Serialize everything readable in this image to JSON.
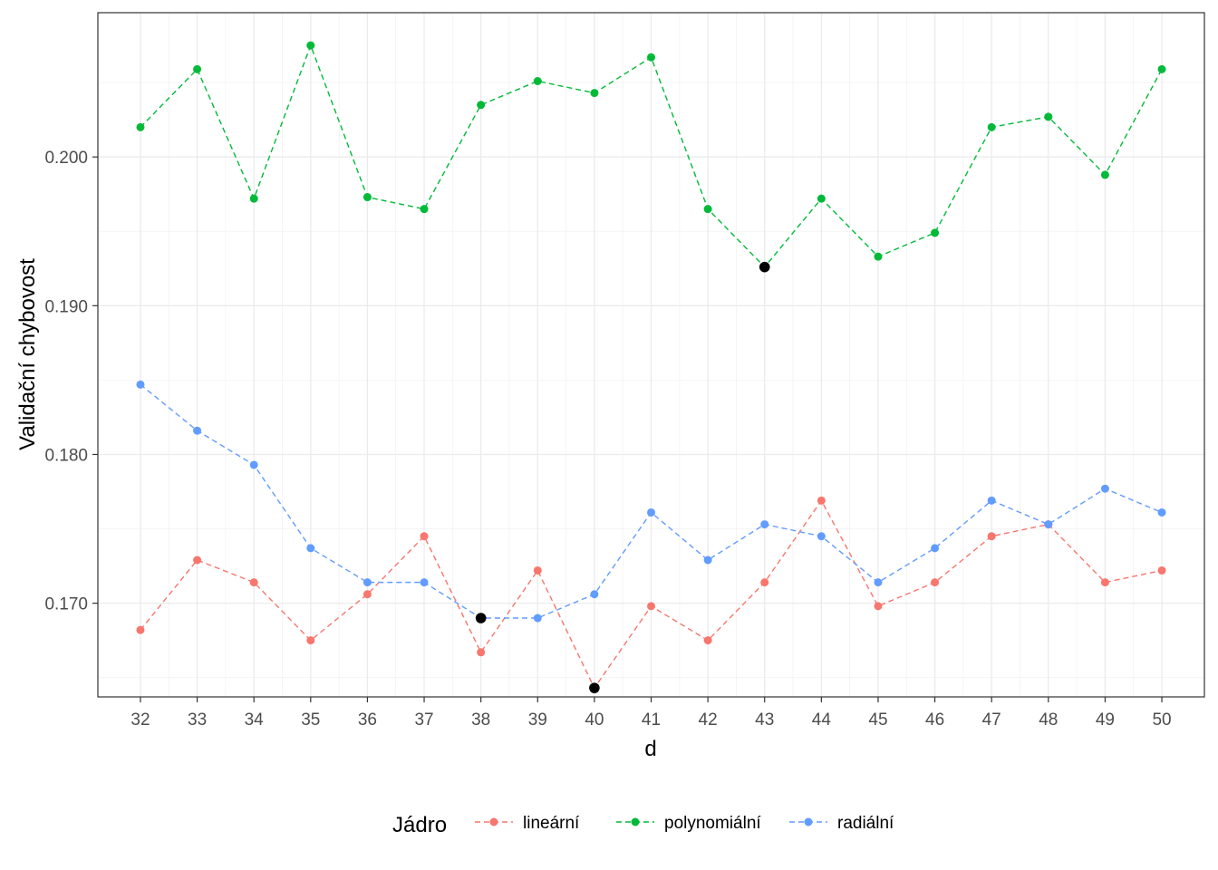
{
  "chart_data": {
    "type": "line",
    "xlabel": "d",
    "ylabel": "Validační chybovost",
    "x": [
      32,
      33,
      34,
      35,
      36,
      37,
      38,
      39,
      40,
      41,
      42,
      43,
      44,
      45,
      46,
      47,
      48,
      49,
      50
    ],
    "xlim": [
      31.25,
      50.75
    ],
    "ylim": [
      0.1637,
      0.2097
    ],
    "yticks": [
      0.17,
      0.18,
      0.19,
      0.2
    ],
    "ytick_labels": [
      "0.170",
      "0.180",
      "0.190",
      "0.200"
    ],
    "grid": true,
    "legend": {
      "title": "Jádro",
      "position": "bottom"
    },
    "series": [
      {
        "name": "lineární",
        "color": "#F8766D",
        "values": [
          0.1682,
          0.1729,
          0.1714,
          0.1675,
          0.1706,
          0.1745,
          0.1667,
          0.1722,
          0.1643,
          0.1698,
          0.1675,
          0.1714,
          0.1769,
          0.1698,
          0.1714,
          0.1745,
          0.1753,
          0.1714,
          0.1722
        ]
      },
      {
        "name": "polynomiální",
        "color": "#00BA38",
        "values": [
          0.202,
          0.2059,
          0.1972,
          0.2075,
          0.1973,
          0.1965,
          0.2035,
          0.2051,
          0.2043,
          0.2067,
          0.1965,
          0.1926,
          0.1972,
          0.1933,
          0.1949,
          0.202,
          0.2027,
          0.1988,
          0.2059
        ]
      },
      {
        "name": "radiální",
        "color": "#619CFF",
        "values": [
          0.1847,
          0.1816,
          0.1793,
          0.1737,
          0.1714,
          0.1714,
          0.169,
          0.169,
          0.1706,
          0.1761,
          0.1729,
          0.1753,
          0.1745,
          0.1714,
          0.1737,
          0.1769,
          0.1753,
          0.1777,
          0.1761
        ]
      }
    ],
    "highlighted_minima": [
      {
        "x": 40,
        "y": 0.1643
      },
      {
        "x": 43,
        "y": 0.1926
      },
      {
        "x": 38,
        "y": 0.169
      }
    ]
  }
}
